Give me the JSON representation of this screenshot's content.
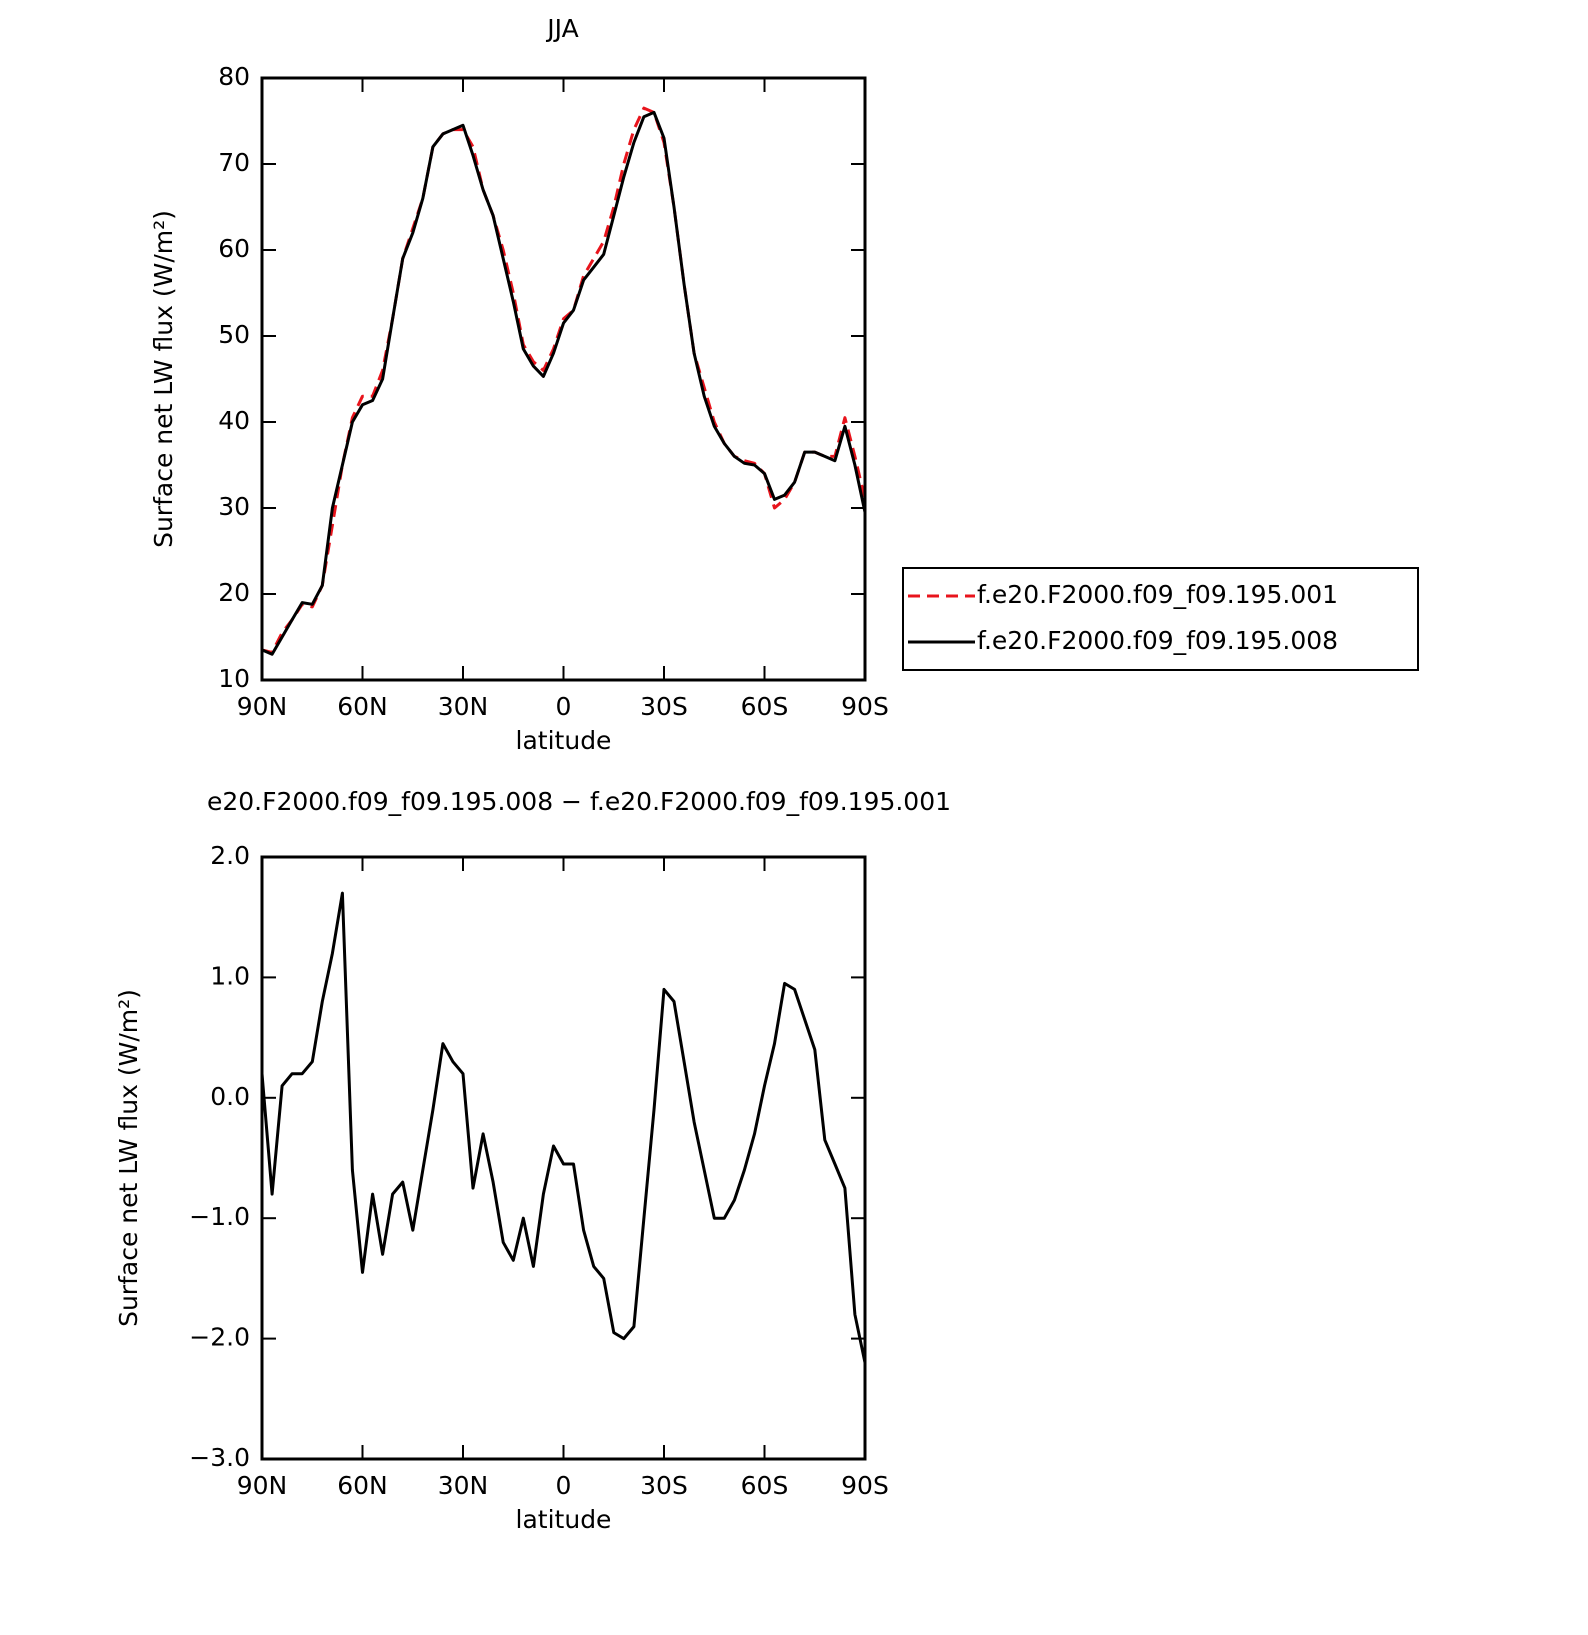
{
  "chart_data": [
    {
      "type": "line",
      "title": "JJA",
      "x_label": "latitude",
      "y_label": "Surface net LW flux (W/m²)",
      "x": [
        90,
        87,
        84,
        81,
        78,
        75,
        72,
        69,
        66,
        63,
        60,
        57,
        54,
        51,
        48,
        45,
        42,
        39,
        36,
        33,
        30,
        27,
        24,
        21,
        18,
        15,
        12,
        9,
        6,
        3,
        0,
        -3,
        -6,
        -9,
        -12,
        -15,
        -18,
        -21,
        -24,
        -27,
        -30,
        -33,
        -36,
        -39,
        -42,
        -45,
        -48,
        -51,
        -54,
        -57,
        -60,
        -63,
        -66,
        -69,
        -72,
        -75,
        -78,
        -81,
        -84,
        -87,
        -90
      ],
      "series": [
        {
          "name": "f.e20.F2000.f09_f09.195.001",
          "color": "#e8141c",
          "dashed": true,
          "values": [
            13.5,
            13.2,
            15.5,
            17,
            18.8,
            18.5,
            21,
            28,
            35,
            40.5,
            43,
            43,
            46,
            52,
            59,
            62.5,
            66,
            72,
            73.5,
            74,
            74,
            72,
            67,
            64,
            60,
            55,
            49,
            47,
            46,
            48.5,
            52,
            53,
            57,
            59,
            61,
            65,
            70,
            74,
            76.5,
            76,
            72.5,
            65,
            56,
            48,
            44,
            40,
            37.5,
            36,
            35.5,
            35.2,
            34,
            30,
            31,
            33,
            36.5,
            36.5,
            36,
            36,
            40.5,
            36,
            31
          ]
        },
        {
          "name": "f.e20.F2000.f09_f09.195.008",
          "color": "#000000",
          "dashed": false,
          "values": [
            13.5,
            13,
            15,
            17,
            19,
            18.8,
            21,
            30,
            35,
            40,
            42,
            42.5,
            45,
            52,
            59,
            62,
            66,
            72,
            73.5,
            74,
            74.5,
            71,
            67,
            64,
            59,
            54,
            48.5,
            46.5,
            45.3,
            48,
            51.5,
            53,
            56.5,
            58,
            59.5,
            64,
            68.5,
            72.5,
            75.5,
            76,
            73,
            65,
            56,
            48,
            43,
            39.5,
            37.5,
            36,
            35.2,
            35,
            34,
            31,
            31.5,
            33,
            36.5,
            36.5,
            36,
            35.5,
            39.5,
            35,
            29.5
          ]
        }
      ],
      "xlim": [
        90,
        -90
      ],
      "xticks": [
        {
          "value": 90,
          "label": "90N"
        },
        {
          "value": 60,
          "label": "60N"
        },
        {
          "value": 30,
          "label": "30N"
        },
        0,
        {
          "value": -30,
          "label": "30S"
        },
        {
          "value": -60,
          "label": "60S"
        },
        {
          "value": -90,
          "label": "90S"
        }
      ],
      "ylim": [
        10,
        80
      ],
      "yticks": [
        10,
        20,
        30,
        40,
        50,
        60,
        70,
        80
      ],
      "legend": "outside-right"
    },
    {
      "type": "line",
      "title": "e20.F2000.f09_f09.195.008 − f.e20.F2000.f09_f09.195.001",
      "x_label": "latitude",
      "y_label": "Surface net LW flux (W/m²)",
      "x": [
        90,
        87,
        84,
        81,
        78,
        75,
        72,
        69,
        66,
        63,
        60,
        57,
        54,
        51,
        48,
        45,
        42,
        39,
        36,
        33,
        30,
        27,
        24,
        21,
        18,
        15,
        12,
        9,
        6,
        3,
        0,
        -3,
        -6,
        -9,
        -12,
        -15,
        -18,
        -21,
        -24,
        -27,
        -30,
        -33,
        -36,
        -39,
        -42,
        -45,
        -48,
        -51,
        -54,
        -57,
        -60,
        -63,
        -66,
        -69,
        -72,
        -75,
        -78,
        -81,
        -84,
        -87,
        -90
      ],
      "values": [
        0.2,
        -0.8,
        0.1,
        0.2,
        0.2,
        0.3,
        0.8,
        1.2,
        1.7,
        -0.6,
        -1.45,
        -0.8,
        -1.3,
        -0.8,
        -0.7,
        -1.1,
        -0.6,
        -0.1,
        0.45,
        0.3,
        0.2,
        -0.75,
        -0.3,
        -0.7,
        -1.2,
        -1.35,
        -1.0,
        -1.4,
        -0.8,
        -0.4,
        -0.55,
        -0.55,
        -1.1,
        -1.4,
        -1.5,
        -1.95,
        -2.0,
        -1.9,
        -1.0,
        -0.1,
        0.9,
        0.8,
        0.3,
        -0.2,
        -0.6,
        -1.0,
        -1.0,
        -0.85,
        -0.6,
        -0.3,
        0.1,
        0.45,
        0.95,
        0.9,
        0.65,
        0.4,
        -0.35,
        -0.55,
        -0.75,
        -1.8,
        -2.2
      ],
      "color": "#000000",
      "xlim": [
        90,
        -90
      ],
      "xticks": [
        {
          "value": 90,
          "label": "90N"
        },
        {
          "value": 60,
          "label": "60N"
        },
        {
          "value": 30,
          "label": "30N"
        },
        0,
        {
          "value": -30,
          "label": "30S"
        },
        {
          "value": -60,
          "label": "60S"
        },
        {
          "value": -90,
          "label": "90S"
        }
      ],
      "ylim": [
        -3,
        2
      ],
      "yticks": [
        {
          "value": -3,
          "label": "−3.0"
        },
        {
          "value": -2,
          "label": "−2.0"
        },
        {
          "value": -1,
          "label": "−1.0"
        },
        {
          "value": 0,
          "label": "0.0"
        },
        {
          "value": 1,
          "label": "1.0"
        },
        {
          "value": 2,
          "label": "2.0"
        }
      ]
    }
  ]
}
